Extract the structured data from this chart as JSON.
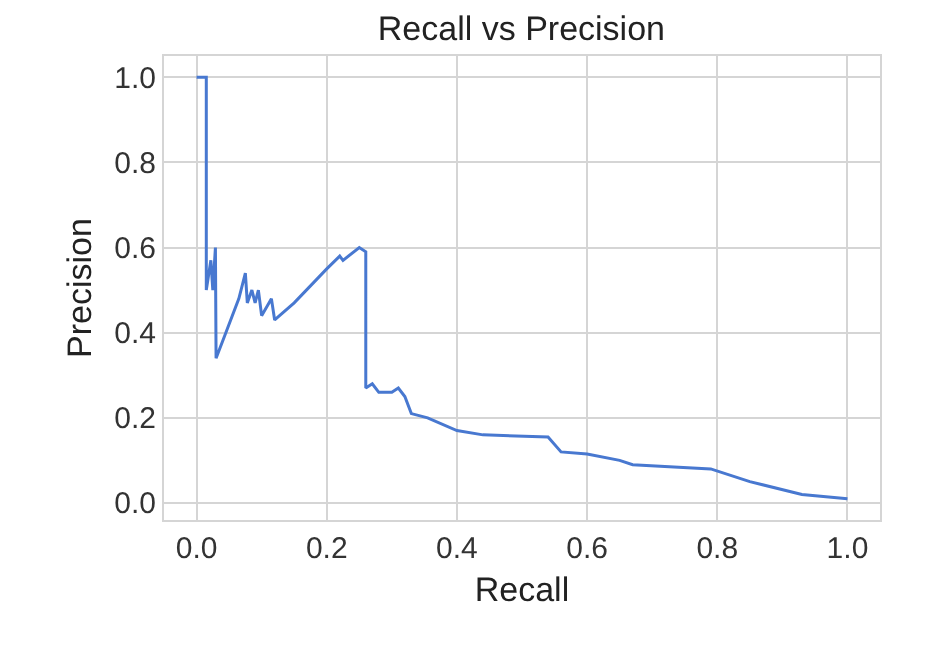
{
  "chart_data": {
    "type": "line",
    "title": "Recall vs Precision",
    "xlabel": "Recall",
    "ylabel": "Precision",
    "x": [
      0,
      0.015,
      0.015,
      0.022,
      0.025,
      0.029,
      0.03,
      0.045,
      0.065,
      0.075,
      0.078,
      0.085,
      0.09,
      0.095,
      0.1,
      0.115,
      0.12,
      0.15,
      0.2,
      0.22,
      0.225,
      0.25,
      0.26,
      0.26,
      0.27,
      0.28,
      0.3,
      0.31,
      0.32,
      0.33,
      0.355,
      0.4,
      0.44,
      0.54,
      0.56,
      0.6,
      0.65,
      0.67,
      0.79,
      0.85,
      0.93,
      1.0
    ],
    "values": [
      1.0,
      1.0,
      0.5,
      0.57,
      0.5,
      0.6,
      0.34,
      0.4,
      0.48,
      0.54,
      0.47,
      0.5,
      0.47,
      0.5,
      0.44,
      0.48,
      0.43,
      0.47,
      0.55,
      0.58,
      0.57,
      0.6,
      0.59,
      0.27,
      0.28,
      0.26,
      0.26,
      0.27,
      0.25,
      0.21,
      0.2,
      0.17,
      0.16,
      0.155,
      0.12,
      0.115,
      0.1,
      0.09,
      0.08,
      0.05,
      0.02,
      0.01
    ],
    "color": "#4878d0",
    "xlim": [
      -0.05,
      1.05
    ],
    "ylim": [
      -0.04,
      1.05
    ],
    "xticks": [
      {
        "value": 0,
        "label": "0.0"
      },
      0.2,
      0.4,
      0.6,
      0.8,
      {
        "value": 1,
        "label": "1.0"
      }
    ],
    "yticks": [
      {
        "value": 0,
        "label": "0.0"
      },
      0.2,
      0.4,
      0.6,
      0.8,
      {
        "value": 1,
        "label": "1.0"
      }
    ],
    "grid": true,
    "line_style": "solid"
  }
}
